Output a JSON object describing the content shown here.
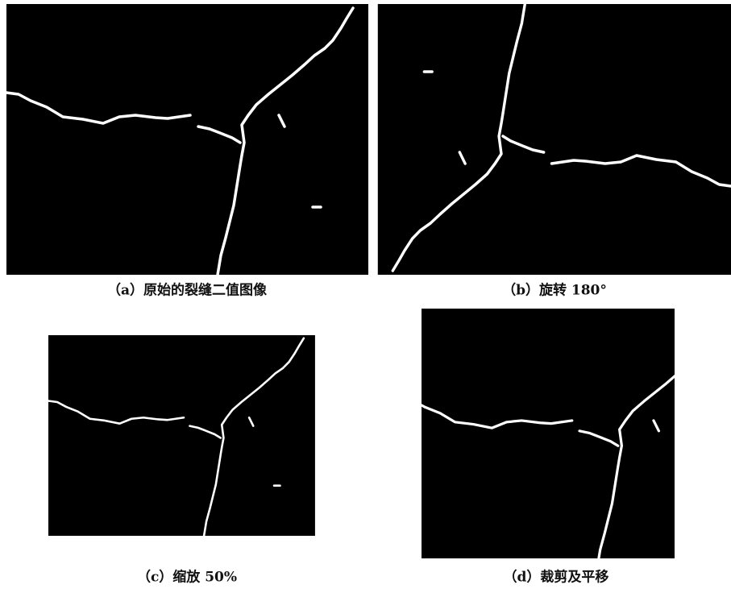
{
  "panels": [
    {
      "caption": "（a）原始的裂缝二值图像"
    },
    {
      "caption": "（b）旋转 180°"
    },
    {
      "caption": "（c）缩放 50%"
    },
    {
      "caption": "（d）裁剪及平移"
    }
  ]
}
